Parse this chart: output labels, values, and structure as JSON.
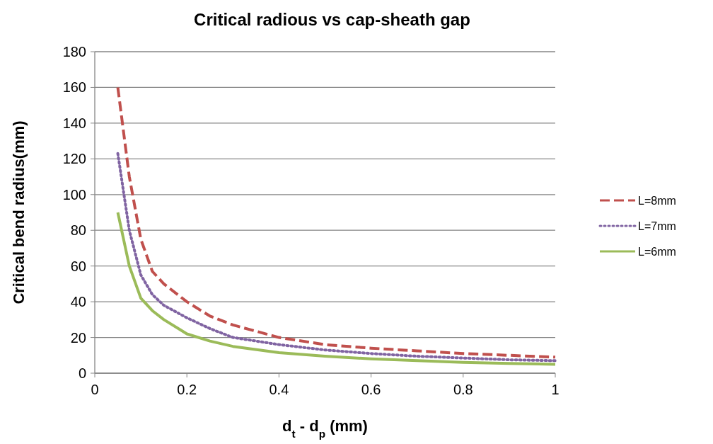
{
  "chart_data": {
    "type": "line",
    "title": "Critical radious vs cap-sheath gap",
    "xlabel": "d$_{t}$  -  d$_{p}$  (mm)",
    "ylabel": "Critical bend radius(mm)",
    "x": [
      0.05,
      0.075,
      0.1,
      0.125,
      0.15,
      0.2,
      0.25,
      0.3,
      0.4,
      0.5,
      0.6,
      0.7,
      0.8,
      0.9,
      1.0
    ],
    "series": [
      {
        "name": "L=8mm",
        "color": "#c0504d",
        "line_style": "dashed",
        "values": [
          160,
          110,
          75,
          57,
          50,
          40,
          32,
          27,
          20,
          16,
          14,
          12.5,
          11,
          10,
          9
        ]
      },
      {
        "name": "L=7mm",
        "color": "#8064a2",
        "line_style": "dotted",
        "values": [
          123,
          80,
          55,
          44,
          38,
          31,
          25,
          20,
          16,
          13,
          11,
          9.5,
          8.5,
          7.5,
          7
        ]
      },
      {
        "name": "L=6mm",
        "color": "#9bbb59",
        "line_style": "solid",
        "values": [
          90,
          60,
          42,
          35,
          30,
          22,
          18,
          15,
          11.5,
          9.5,
          8,
          7,
          6,
          5.5,
          5
        ]
      }
    ],
    "xlim": [
      0,
      1
    ],
    "xticks": [
      0,
      0.2,
      0.4,
      0.6,
      0.8,
      1
    ],
    "ylim": [
      0,
      180
    ],
    "yticks": [
      0,
      20,
      40,
      60,
      80,
      100,
      120,
      140,
      160,
      180
    ],
    "grid": "y",
    "legend": "right",
    "marker": "none"
  }
}
